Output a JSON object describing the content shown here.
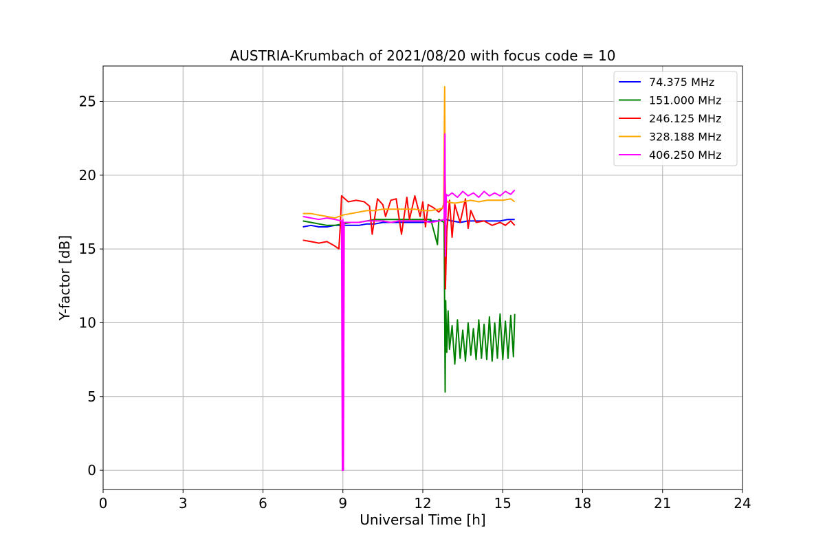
{
  "chart_data": {
    "type": "line",
    "title": "AUSTRIA-Krumbach of 2021/08/20 with focus code = 10",
    "xlabel": "Universal Time [h]",
    "ylabel": "Y-factor [dB]",
    "xlim": [
      0,
      24
    ],
    "ylim": [
      -1.3,
      27.4
    ],
    "xticks": [
      0,
      3,
      6,
      9,
      12,
      15,
      18,
      21,
      24
    ],
    "yticks": [
      0,
      5,
      10,
      15,
      20,
      25
    ],
    "grid": true,
    "legend_position": "top-right",
    "series": [
      {
        "name": " 74.375 MHz",
        "color": "#0000ff",
        "x": [
          7.5,
          7.8,
          8.1,
          8.4,
          8.7,
          9.0,
          9.3,
          9.6,
          9.9,
          10.2,
          10.5,
          10.8,
          11.1,
          11.4,
          11.7,
          12.0,
          12.3,
          12.6,
          12.85,
          13.1,
          13.4,
          13.7,
          14.0,
          14.3,
          14.6,
          14.9,
          15.2,
          15.45
        ],
        "values": [
          16.5,
          16.6,
          16.5,
          16.5,
          16.6,
          16.6,
          16.6,
          16.6,
          16.7,
          16.7,
          16.8,
          16.8,
          16.8,
          16.8,
          16.8,
          16.8,
          16.9,
          16.9,
          17.0,
          16.9,
          16.8,
          16.9,
          16.9,
          16.9,
          16.9,
          16.9,
          17.0,
          17.0
        ]
      },
      {
        "name": " 151.000 MHz",
        "color": "#008000",
        "x": [
          7.5,
          7.8,
          8.1,
          8.4,
          8.7,
          9.0,
          9.3,
          9.6,
          9.9,
          10.2,
          10.5,
          10.8,
          11.1,
          11.4,
          11.7,
          12.0,
          12.3,
          12.55,
          12.6,
          12.8,
          12.84,
          12.86,
          12.9,
          12.95,
          13.0,
          13.1,
          13.2,
          13.3,
          13.4,
          13.5,
          13.6,
          13.7,
          13.8,
          13.9,
          14.0,
          14.1,
          14.2,
          14.3,
          14.4,
          14.5,
          14.6,
          14.7,
          14.8,
          14.9,
          15.0,
          15.1,
          15.2,
          15.3,
          15.4,
          15.45
        ],
        "values": [
          16.9,
          16.8,
          16.7,
          16.6,
          16.6,
          16.7,
          16.8,
          16.8,
          16.9,
          17.0,
          17.0,
          17.0,
          17.0,
          17.0,
          17.0,
          17.0,
          17.0,
          15.3,
          17.0,
          16.8,
          5.3,
          11.5,
          8.0,
          10.8,
          8.2,
          9.8,
          7.2,
          10.2,
          7.6,
          9.5,
          7.4,
          10.0,
          7.8,
          9.6,
          7.5,
          10.2,
          7.6,
          9.9,
          7.5,
          10.4,
          7.4,
          10.0,
          7.6,
          10.6,
          7.5,
          10.1,
          7.6,
          10.5,
          7.7,
          10.6
        ]
      },
      {
        "name": " 246.125 MHz",
        "color": "#ff0000",
        "x": [
          7.5,
          7.8,
          8.1,
          8.4,
          8.7,
          8.85,
          8.9,
          8.95,
          9.2,
          9.5,
          9.8,
          10.0,
          10.1,
          10.3,
          10.5,
          10.6,
          10.8,
          11.0,
          11.2,
          11.4,
          11.5,
          11.7,
          11.9,
          12.0,
          12.1,
          12.2,
          12.4,
          12.6,
          12.75,
          12.82,
          12.85,
          12.9,
          13.0,
          13.1,
          13.2,
          13.4,
          13.6,
          13.7,
          13.8,
          14.0,
          14.3,
          14.6,
          14.9,
          15.1,
          15.3,
          15.45
        ],
        "values": [
          15.6,
          15.5,
          15.4,
          15.5,
          15.2,
          15.0,
          16.5,
          18.6,
          18.2,
          18.3,
          18.2,
          17.9,
          16.0,
          18.4,
          18.0,
          17.2,
          18.3,
          18.4,
          16.0,
          18.5,
          17.0,
          18.6,
          17.2,
          18.2,
          16.5,
          18.0,
          17.8,
          17.5,
          17.8,
          18.4,
          12.3,
          16.2,
          18.3,
          15.8,
          18.0,
          16.8,
          18.4,
          16.4,
          17.6,
          16.8,
          16.9,
          16.6,
          16.8,
          16.6,
          16.9,
          16.6
        ]
      },
      {
        "name": " 328.188 MHz",
        "color": "#ffa500",
        "x": [
          7.5,
          7.8,
          8.1,
          8.4,
          8.7,
          9.0,
          9.3,
          9.6,
          9.9,
          10.2,
          10.5,
          10.8,
          11.1,
          11.4,
          11.7,
          12.0,
          12.3,
          12.6,
          12.78,
          12.82,
          12.84,
          12.86,
          12.9,
          13.2,
          13.5,
          13.8,
          14.1,
          14.4,
          14.7,
          15.0,
          15.3,
          15.45
        ],
        "values": [
          17.4,
          17.4,
          17.3,
          17.2,
          17.1,
          17.3,
          17.4,
          17.5,
          17.6,
          17.6,
          17.7,
          17.7,
          17.7,
          17.7,
          17.7,
          17.6,
          17.6,
          17.7,
          17.8,
          26.0,
          20.0,
          18.5,
          18.2,
          18.1,
          18.2,
          18.3,
          18.2,
          18.3,
          18.3,
          18.3,
          18.4,
          18.2
        ]
      },
      {
        "name": " 406.250 MHz",
        "color": "#ff00ff",
        "x": [
          7.5,
          7.8,
          8.1,
          8.4,
          8.7,
          8.95,
          8.98,
          9.0,
          9.02,
          9.05,
          9.3,
          9.6,
          9.9,
          10.2,
          10.5,
          10.8,
          11.1,
          11.4,
          11.7,
          12.0,
          12.3,
          12.6,
          12.8,
          12.83,
          12.85,
          12.88,
          12.95,
          13.1,
          13.3,
          13.5,
          13.7,
          13.9,
          14.1,
          14.3,
          14.5,
          14.7,
          14.9,
          15.1,
          15.3,
          15.45
        ],
        "values": [
          17.2,
          17.1,
          17.0,
          17.1,
          17.0,
          16.9,
          0.0,
          17.0,
          0.0,
          16.8,
          16.8,
          16.8,
          16.9,
          16.9,
          16.9,
          16.8,
          16.9,
          16.9,
          16.9,
          16.9,
          16.8,
          16.9,
          17.0,
          22.8,
          14.5,
          18.7,
          18.6,
          18.8,
          18.5,
          18.9,
          18.6,
          18.8,
          18.5,
          18.9,
          18.6,
          18.8,
          18.6,
          18.9,
          18.7,
          19.0
        ]
      }
    ]
  }
}
